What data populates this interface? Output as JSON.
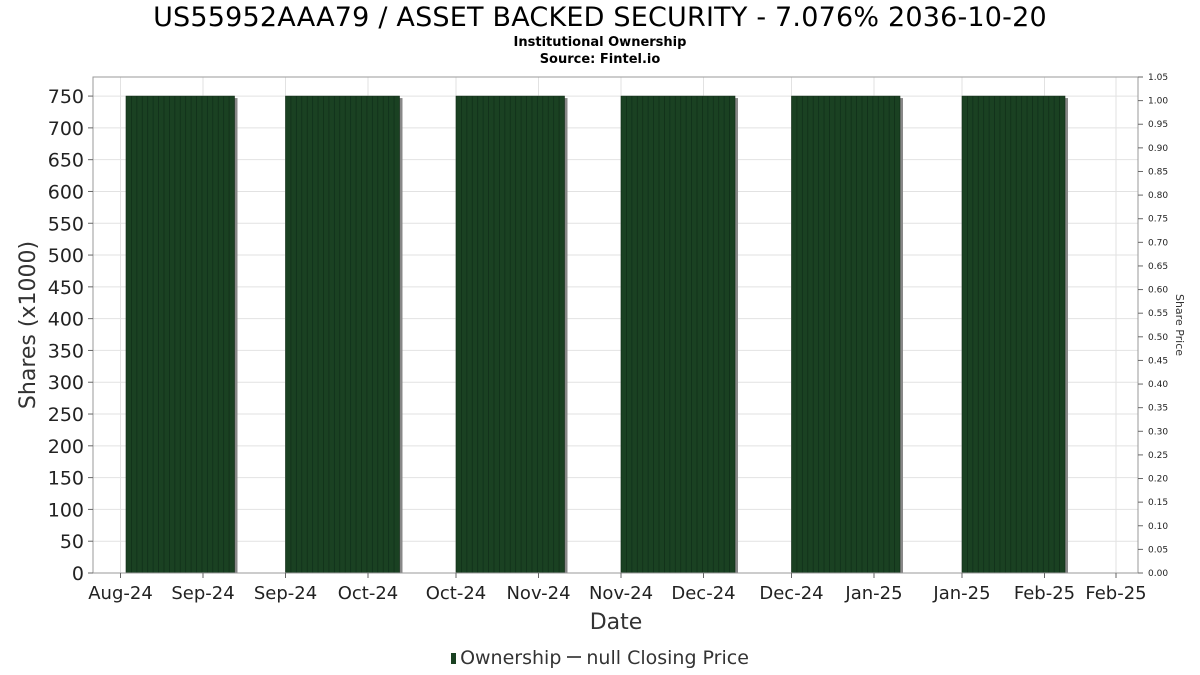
{
  "title": "US55952AAA79 / ASSET BACKED SECURITY - 7.076% 2036-10-20",
  "subtitle_1": "Institutional Ownership",
  "subtitle_2": "Source: Fintel.io",
  "legend": {
    "ownership": "Ownership",
    "price": "null Closing Price"
  },
  "colors": {
    "bar": "#1a4122",
    "bar_shadow": "#888888",
    "grid": "#e2e2e2",
    "frame": "#999999"
  },
  "chart_data": {
    "type": "bar",
    "xlabel": "Date",
    "ylabel": "Shares (x1000)",
    "y2label": "Share Price",
    "ylim": [
      0,
      780
    ],
    "y2lim": [
      0,
      1.05
    ],
    "yticks": [
      0,
      50,
      100,
      150,
      200,
      250,
      300,
      350,
      400,
      450,
      500,
      550,
      600,
      650,
      700,
      750
    ],
    "y2ticks": [
      "0.00",
      "0.05",
      "0.10",
      "0.15",
      "0.20",
      "0.25",
      "0.30",
      "0.35",
      "0.40",
      "0.45",
      "0.50",
      "0.55",
      "0.60",
      "0.65",
      "0.70",
      "0.75",
      "0.80",
      "0.85",
      "0.90",
      "0.95",
      "1.00",
      "1.05"
    ],
    "xticks": [
      "Aug-24",
      "Sep-24",
      "Sep-24",
      "Oct-24",
      "Oct-24",
      "Nov-24",
      "Nov-24",
      "Dec-24",
      "Dec-24",
      "Jan-25",
      "Jan-25",
      "Feb-25",
      "Feb-25"
    ],
    "xrange": [
      "2024-08-26",
      "2025-03-04"
    ],
    "xtick_dates": [
      "2024-08-31",
      "2024-09-15",
      "2024-09-30",
      "2024-10-15",
      "2024-10-31",
      "2024-11-15",
      "2024-11-30",
      "2024-12-15",
      "2024-12-31",
      "2025-01-15",
      "2025-01-31",
      "2025-02-15",
      "2025-02-28"
    ],
    "series": [
      {
        "name": "Ownership",
        "segments": [
          {
            "start": "2024-09-01",
            "end": "2024-09-20",
            "value": 750
          },
          {
            "start": "2024-09-30",
            "end": "2024-10-20",
            "value": 750
          },
          {
            "start": "2024-10-31",
            "end": "2024-11-19",
            "value": 750
          },
          {
            "start": "2024-11-30",
            "end": "2024-12-20",
            "value": 750
          },
          {
            "start": "2024-12-31",
            "end": "2025-01-19",
            "value": 750
          },
          {
            "start": "2025-01-31",
            "end": "2025-02-18",
            "value": 750
          }
        ]
      },
      {
        "name": "null Closing Price",
        "values": []
      }
    ],
    "grid": true,
    "legend_position": "bottom"
  }
}
